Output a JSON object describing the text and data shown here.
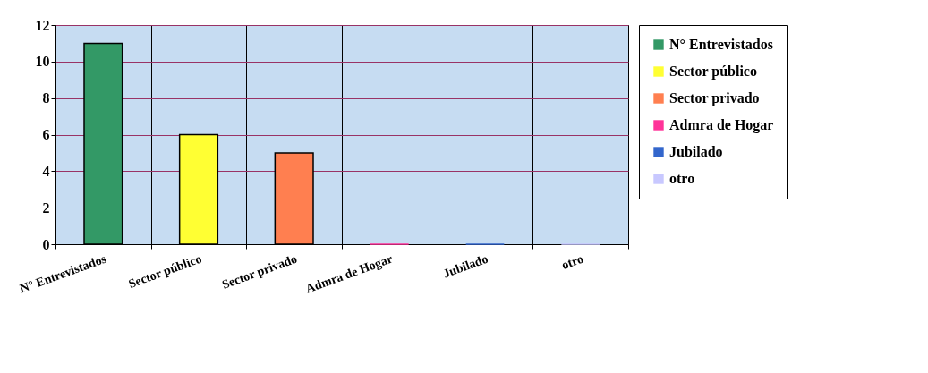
{
  "chart_data": {
    "type": "bar",
    "stacked": true,
    "categories": [
      "N° Entrevistados",
      "Sector público",
      "Sector privado",
      "Admra de Hogar",
      "Jubilado",
      "otro"
    ],
    "series": [
      {
        "name": "N° Entrevistados",
        "color": "#339966",
        "values": [
          11,
          null,
          null,
          null,
          null,
          null
        ]
      },
      {
        "name": "Sector público",
        "color": "#ffff33",
        "values": [
          null,
          6,
          null,
          null,
          null,
          null
        ]
      },
      {
        "name": "Sector privado",
        "color": "#ff7f50",
        "values": [
          null,
          null,
          5,
          null,
          null,
          null
        ]
      },
      {
        "name": "Admra de Hogar",
        "color": "#ff3399",
        "values": [
          null,
          null,
          null,
          0,
          null,
          null
        ]
      },
      {
        "name": "Jubilado",
        "color": "#3366cc",
        "values": [
          null,
          null,
          null,
          null,
          0,
          null
        ]
      },
      {
        "name": "otro",
        "color": "#c8c8ff",
        "values": [
          null,
          null,
          null,
          null,
          null,
          0
        ]
      }
    ],
    "ylim": [
      0,
      12
    ],
    "yticks": [
      0,
      2,
      4,
      6,
      8,
      10,
      12
    ],
    "grid": true,
    "legend": "right"
  }
}
